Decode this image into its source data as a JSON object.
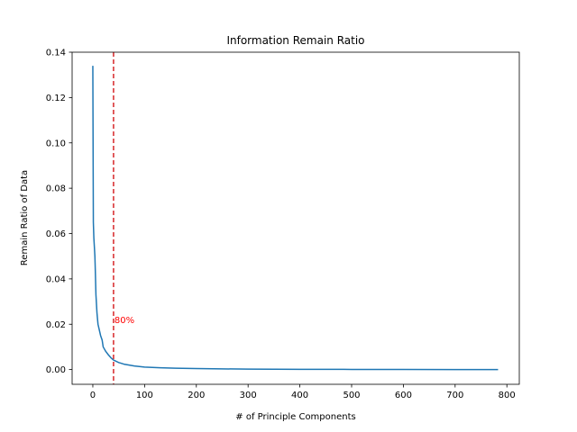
{
  "chart_data": {
    "type": "line",
    "title": "Information Remain Ratio",
    "xlabel": "# of Principle Components",
    "ylabel": "Remain Ratio of Data",
    "xlim": [
      -40,
      824
    ],
    "ylim": [
      -0.0065,
      0.14
    ],
    "xticks": [
      0,
      100,
      200,
      300,
      400,
      500,
      600,
      700,
      800
    ],
    "yticks": [
      0.0,
      0.02,
      0.04,
      0.06,
      0.08,
      0.1,
      0.12,
      0.14
    ],
    "ytick_labels": [
      "0.00",
      "0.02",
      "0.04",
      "0.06",
      "0.08",
      "0.10",
      "0.12",
      "0.14"
    ],
    "grid": false,
    "series": [
      {
        "color": "#1f77b4",
        "x": [
          0,
          1,
          2,
          3,
          4,
          5,
          6,
          8,
          10,
          12,
          15,
          18,
          20,
          25,
          30,
          35,
          40,
          50,
          60,
          80,
          100,
          130,
          160,
          200,
          250,
          300,
          400,
          500,
          600,
          700,
          783
        ],
        "y": [
          0.134,
          0.065,
          0.058,
          0.054,
          0.05,
          0.042,
          0.033,
          0.025,
          0.02,
          0.018,
          0.015,
          0.013,
          0.01,
          0.008,
          0.0065,
          0.0052,
          0.0042,
          0.0031,
          0.0024,
          0.0016,
          0.0011,
          0.0008,
          0.0006,
          0.00045,
          0.0003,
          0.0002,
          0.00012,
          7e-05,
          4e-05,
          2e-05,
          0.0
        ]
      }
    ],
    "vline": {
      "x": 40,
      "color": "#d62728",
      "style": "dashed"
    },
    "annotation": {
      "text": "80%",
      "x": 40,
      "y": 0.0205,
      "color": "#ff0000"
    }
  }
}
